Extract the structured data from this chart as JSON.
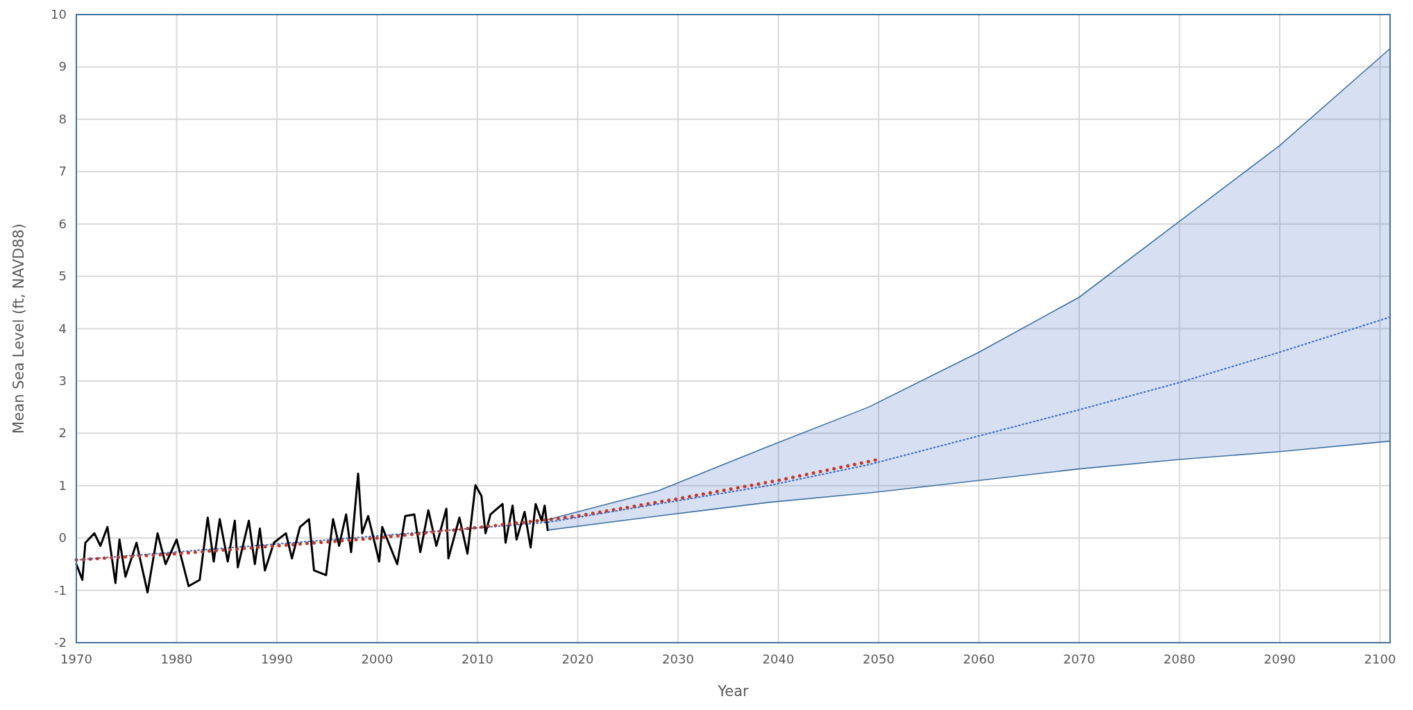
{
  "chart_data": {
    "type": "line",
    "xlabel": "Year",
    "ylabel": "Mean Sea Level (ft, NAVD88)",
    "xlim": [
      1970,
      2101
    ],
    "xticks": [
      1970,
      1980,
      1990,
      2000,
      2010,
      2020,
      2030,
      2040,
      2050,
      2060,
      2070,
      2080,
      2090,
      2100
    ],
    "ylim": [
      -2,
      10
    ],
    "yticks": [
      -2,
      -1,
      0,
      1,
      2,
      3,
      4,
      5,
      6,
      7,
      8,
      9,
      10
    ],
    "grid": true,
    "series": [
      {
        "color": "#41719c",
        "line_style": "solid",
        "x": [
          2017,
          2028,
          2039,
          2049,
          2060,
          2070,
          2080,
          2090,
          2101
        ],
        "values": [
          0.35,
          0.9,
          1.75,
          2.5,
          3.55,
          4.6,
          6.05,
          7.5,
          9.35
        ]
      },
      {
        "color": "#41719c",
        "line_style": "solid",
        "x": [
          2017,
          2028,
          2039,
          2049,
          2060,
          2070,
          2080,
          2090,
          2101
        ],
        "values": [
          0.15,
          0.42,
          0.68,
          0.86,
          1.1,
          1.32,
          1.5,
          1.65,
          1.85
        ]
      },
      {
        "color": "#4472c4",
        "line_style": "dotted",
        "x": [
          1970,
          2017,
          2028,
          2039,
          2049,
          2060,
          2070,
          2080,
          2090,
          2101
        ],
        "values": [
          -0.42,
          0.3,
          0.65,
          1.0,
          1.4,
          1.95,
          2.45,
          2.97,
          3.55,
          4.22
        ],
        "lower": [
          null,
          0.15,
          0.42,
          0.68,
          0.86,
          1.1,
          1.32,
          1.5,
          1.65,
          1.85
        ],
        "upper": [
          null,
          0.35,
          0.9,
          1.75,
          2.5,
          3.55,
          4.6,
          6.05,
          7.5,
          9.35
        ]
      },
      {
        "color": "#000000",
        "line_style": "solid",
        "x": [
          1970.0,
          1970.6,
          1970.9,
          1971.8,
          1972.4,
          1973.1,
          1973.9,
          1974.3,
          1974.9,
          1976.0,
          1977.1,
          1978.1,
          1978.9,
          1980.0,
          1981.2,
          1982.3,
          1983.1,
          1983.7,
          1984.3,
          1985.1,
          1985.8,
          1986.1,
          1987.2,
          1987.8,
          1988.3,
          1988.8,
          1989.7,
          1990.9,
          1991.5,
          1992.3,
          1993.2,
          1993.7,
          1994.9,
          1995.6,
          1996.2,
          1996.9,
          1997.4,
          1998.1,
          1998.5,
          1999.1,
          2000.2,
          2000.5,
          2002.0,
          2002.8,
          2003.7,
          2004.3,
          2005.1,
          2005.9,
          2006.9,
          2007.1,
          2008.2,
          2009.0,
          2009.8,
          2010.4,
          2010.8,
          2011.3,
          2012.5,
          2012.8,
          2013.5,
          2013.9,
          2014.7,
          2015.3,
          2015.8,
          2016.4,
          2016.7,
          2017.0
        ],
        "values": [
          -0.5,
          -0.8,
          -0.09,
          0.09,
          -0.15,
          0.21,
          -0.86,
          -0.03,
          -0.74,
          -0.09,
          -1.04,
          0.09,
          -0.5,
          -0.03,
          -0.92,
          -0.8,
          0.39,
          -0.45,
          0.36,
          -0.45,
          0.33,
          -0.56,
          0.33,
          -0.5,
          0.18,
          -0.62,
          -0.09,
          0.09,
          -0.39,
          0.21,
          0.36,
          -0.62,
          -0.71,
          0.36,
          -0.15,
          0.45,
          -0.27,
          1.23,
          0.09,
          0.42,
          -0.45,
          0.21,
          -0.5,
          0.42,
          0.45,
          -0.27,
          0.53,
          -0.15,
          0.56,
          -0.39,
          0.39,
          -0.3,
          1.01,
          0.8,
          0.09,
          0.45,
          0.65,
          -0.09,
          0.62,
          -0.03,
          0.5,
          -0.18,
          0.65,
          0.33,
          0.62,
          0.15
        ]
      },
      {
        "color": "#c0392b",
        "line_style": "dotted",
        "x": [
          1970,
          1980,
          1990,
          2000,
          2010,
          2017,
          2020,
          2030,
          2040,
          2050
        ],
        "values": [
          -0.42,
          -0.3,
          -0.15,
          0.0,
          0.2,
          0.35,
          0.42,
          0.75,
          1.1,
          1.5
        ]
      }
    ]
  }
}
